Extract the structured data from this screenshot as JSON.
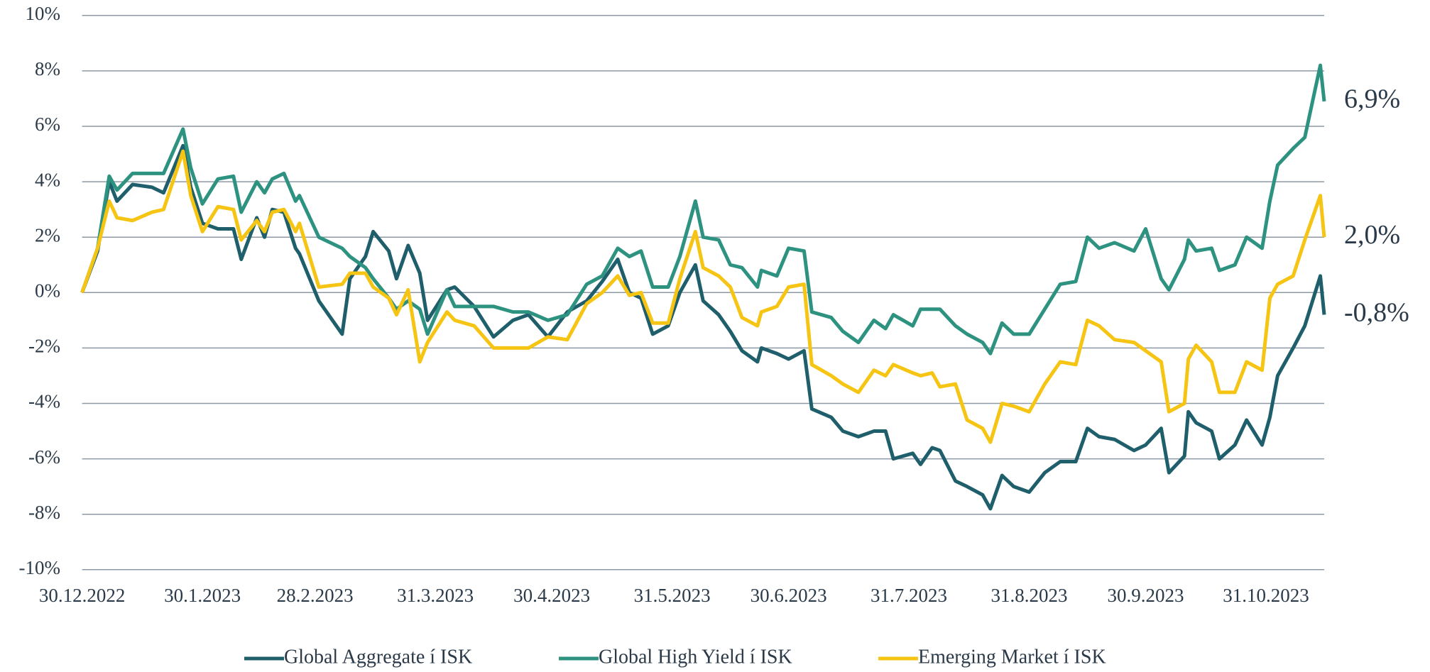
{
  "chart_data": {
    "type": "line",
    "x": [
      "30.12.2022",
      "3.1.2023",
      "6.1.2023",
      "8.1.2023",
      "12.1.2023",
      "17.1.2023",
      "20.1.2023",
      "25.1.2023",
      "27.1.2023",
      "30.1.2023",
      "3.2.2023",
      "7.2.2023",
      "9.2.2023",
      "13.2.2023",
      "15.2.2023",
      "17.2.2023",
      "20.2.2023",
      "23.2.2023",
      "24.2.2023",
      "1.3.2023",
      "7.3.2023",
      "9.3.2023",
      "13.3.2023",
      "15.3.2023",
      "19.3.2023",
      "21.3.2023",
      "24.3.2023",
      "27.3.2023",
      "29.3.2023",
      "3.4.2023",
      "5.4.2023",
      "10.4.2023",
      "15.4.2023",
      "20.4.2023",
      "24.4.2023",
      "29.4.2023",
      "4.5.2023",
      "9.5.2023",
      "13.5.2023",
      "17.5.2023",
      "20.5.2023",
      "23.5.2023",
      "26.5.2023",
      "30.5.2023",
      "2.6.2023",
      "6.6.2023",
      "8.6.2023",
      "12.6.2023",
      "15.6.2023",
      "18.6.2023",
      "22.6.2023",
      "23.6.2023",
      "27.6.2023",
      "30.6.2023",
      "4.7.2023",
      "6.7.2023",
      "11.7.2023",
      "14.7.2023",
      "18.7.2023",
      "22.7.2023",
      "25.7.2023",
      "27.7.2023",
      "1.8.2023",
      "3.8.2023",
      "6.8.2023",
      "8.8.2023",
      "12.8.2023",
      "15.8.2023",
      "19.8.2023",
      "21.8.2023",
      "24.8.2023",
      "27.8.2023",
      "31.8.2023",
      "4.9.2023",
      "8.9.2023",
      "12.9.2023",
      "15.9.2023",
      "18.9.2023",
      "22.9.2023",
      "27.9.2023",
      "30.9.2023",
      "4.10.2023",
      "6.10.2023",
      "10.10.2023",
      "11.10.2023",
      "13.10.2023",
      "17.10.2023",
      "19.10.2023",
      "23.10.2023",
      "26.10.2023",
      "30.10.2023",
      "1.11.2023",
      "3.11.2023",
      "7.11.2023",
      "10.11.2023",
      "14.11.2023",
      "15.11.2023"
    ],
    "series": [
      {
        "name": "Global Aggregate í ISK",
        "color": "#1f5f6b",
        "end_label": "-0,8%",
        "values": [
          0,
          1.5,
          4.0,
          3.3,
          3.9,
          3.8,
          3.6,
          5.3,
          3.8,
          2.5,
          2.3,
          2.3,
          1.2,
          2.7,
          2.0,
          3.0,
          2.9,
          1.6,
          1.4,
          -0.3,
          -1.5,
          0.5,
          1.3,
          2.2,
          1.5,
          0.5,
          1.7,
          0.7,
          -1.0,
          0.1,
          0.2,
          -0.5,
          -1.6,
          -1.0,
          -0.8,
          -1.6,
          -0.7,
          -0.3,
          0.4,
          1.2,
          0.0,
          -0.2,
          -1.5,
          -1.2,
          0.0,
          1.0,
          -0.3,
          -0.8,
          -1.4,
          -2.1,
          -2.5,
          -2.0,
          -2.2,
          -2.4,
          -2.1,
          -4.2,
          -4.5,
          -5.0,
          -5.2,
          -5.0,
          -5.0,
          -6.0,
          -5.8,
          -6.2,
          -5.6,
          -5.7,
          -6.8,
          -7.0,
          -7.3,
          -7.8,
          -6.6,
          -7.0,
          -7.2,
          -6.5,
          -6.1,
          -6.1,
          -4.9,
          -5.2,
          -5.3,
          -5.7,
          -5.5,
          -4.9,
          -6.5,
          -5.9,
          -4.3,
          -4.7,
          -5.0,
          -6.0,
          -5.5,
          -4.6,
          -5.5,
          -4.5,
          -3.0,
          -2.0,
          -1.2,
          0.6,
          -0.8
        ]
      },
      {
        "name": "Global High Yield í ISK",
        "color": "#2e9281",
        "end_label": "6,9%",
        "values": [
          0,
          1.6,
          4.2,
          3.7,
          4.3,
          4.3,
          4.3,
          5.9,
          4.5,
          3.2,
          4.1,
          4.2,
          2.9,
          4.0,
          3.6,
          4.1,
          4.3,
          3.3,
          3.5,
          2.0,
          1.6,
          1.3,
          0.9,
          0.5,
          -0.2,
          -0.6,
          -0.3,
          -0.6,
          -1.5,
          0.1,
          -0.5,
          -0.5,
          -0.5,
          -0.7,
          -0.7,
          -1.0,
          -0.8,
          0.3,
          0.6,
          1.6,
          1.3,
          1.5,
          0.2,
          0.2,
          1.3,
          3.3,
          2.0,
          1.9,
          1.0,
          0.9,
          0.2,
          0.8,
          0.6,
          1.6,
          1.5,
          -0.7,
          -0.9,
          -1.4,
          -1.8,
          -1.0,
          -1.3,
          -0.8,
          -1.2,
          -0.6,
          -0.6,
          -0.6,
          -1.2,
          -1.5,
          -1.8,
          -2.2,
          -1.1,
          -1.5,
          -1.5,
          -0.6,
          0.3,
          0.4,
          2.0,
          1.6,
          1.8,
          1.5,
          2.3,
          0.5,
          0.1,
          1.2,
          1.9,
          1.5,
          1.6,
          0.8,
          1.0,
          2.0,
          1.6,
          3.3,
          4.6,
          5.2,
          5.6,
          8.2,
          6.9
        ]
      },
      {
        "name": "Emerging Market í ISK",
        "color": "#f6c413",
        "end_label": "2,0%",
        "values": [
          0,
          1.6,
          3.3,
          2.7,
          2.6,
          2.9,
          3.0,
          5.1,
          3.5,
          2.2,
          3.1,
          3.0,
          1.9,
          2.6,
          2.2,
          2.9,
          3.0,
          2.2,
          2.5,
          0.2,
          0.3,
          0.7,
          0.7,
          0.2,
          -0.2,
          -0.8,
          0.1,
          -2.5,
          -1.8,
          -0.7,
          -1.0,
          -1.2,
          -2.0,
          -2.0,
          -2.0,
          -1.6,
          -1.7,
          -0.4,
          0.0,
          0.6,
          -0.1,
          0.0,
          -1.1,
          -1.1,
          0.5,
          2.2,
          0.9,
          0.6,
          0.2,
          -0.9,
          -1.2,
          -0.7,
          -0.5,
          0.2,
          0.3,
          -2.6,
          -3.0,
          -3.3,
          -3.6,
          -2.8,
          -3.0,
          -2.6,
          -2.9,
          -3.0,
          -2.9,
          -3.4,
          -3.3,
          -4.6,
          -4.9,
          -5.4,
          -4.0,
          -4.1,
          -4.3,
          -3.3,
          -2.5,
          -2.6,
          -1.0,
          -1.2,
          -1.7,
          -1.8,
          -2.1,
          -2.5,
          -4.3,
          -4.0,
          -2.4,
          -1.9,
          -2.5,
          -3.6,
          -3.6,
          -2.5,
          -2.8,
          -0.2,
          0.3,
          0.6,
          1.9,
          3.5,
          2.0
        ]
      }
    ],
    "xlim": [
      "30.12.2022",
      "15.11.2023"
    ],
    "xticks": [
      "30.12.2022",
      "30.1.2023",
      "28.2.2023",
      "31.3.2023",
      "30.4.2023",
      "31.5.2023",
      "30.6.2023",
      "31.7.2023",
      "31.8.2023",
      "30.9.2023",
      "31.10.2023"
    ],
    "ylim": [
      -10,
      10
    ],
    "yticks": [
      {
        "value": -10,
        "label": "-10%"
      },
      {
        "value": -8,
        "label": "-8%"
      },
      {
        "value": -6,
        "label": "-6%"
      },
      {
        "value": -4,
        "label": "-4%"
      },
      {
        "value": -2,
        "label": "-2%"
      },
      {
        "value": 0,
        "label": "0%"
      },
      {
        "value": 2,
        "label": "2%"
      },
      {
        "value": 4,
        "label": "4%"
      },
      {
        "value": 6,
        "label": "6%"
      },
      {
        "value": 8,
        "label": "8%"
      },
      {
        "value": 10,
        "label": "10%"
      }
    ],
    "grid": true,
    "legend": "bottom"
  }
}
